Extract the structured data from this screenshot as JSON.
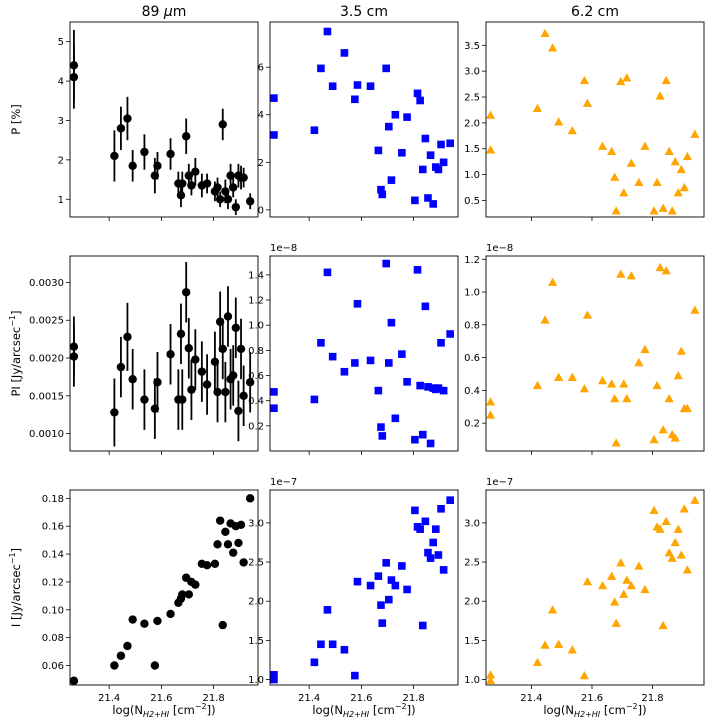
{
  "chart_data": {
    "type": "scatter",
    "layout": "3x3 grid",
    "column_titles": [
      {
        "main": "89 ",
        "italic": "μ",
        "suffix": "m"
      },
      {
        "main": "3.5 cm",
        "italic": "",
        "suffix": ""
      },
      {
        "main": "6.2 cm",
        "italic": "",
        "suffix": ""
      }
    ],
    "xlabel": {
      "a": "log(N",
      "sub": "H2+HI",
      "b": " [cm",
      "sup": "−2",
      "c": "])"
    },
    "xlim": [
      21.25,
      21.97
    ],
    "xticks": [
      "21.4",
      "21.6",
      "21.8"
    ],
    "xtick_values": [
      21.4,
      21.6,
      21.8
    ],
    "rows": [
      {
        "ylabel": "P [%]"
      },
      {
        "ylabel": "PI [Jy/arcsec",
        "ylabel_sup": "−1",
        "ylabel_end": "]"
      },
      {
        "ylabel": "I [Jy/arcsec",
        "ylabel_sup": "−1",
        "ylabel_end": "]"
      }
    ],
    "colors": {
      "col1": "#000000",
      "col2": "#0000ff",
      "col3": "#ffa500"
    },
    "x": [
      21.265,
      21.265,
      21.42,
      21.445,
      21.47,
      21.49,
      21.535,
      21.575,
      21.585,
      21.635,
      21.665,
      21.675,
      21.68,
      21.695,
      21.705,
      21.715,
      21.73,
      21.755,
      21.775,
      21.805,
      21.815,
      21.825,
      21.835,
      21.845,
      21.855,
      21.865,
      21.875,
      21.885,
      21.895,
      21.905,
      21.915,
      21.94
    ],
    "panels": [
      {
        "row": 0,
        "col": 0,
        "marker": "circle",
        "ylim": [
          0.55,
          5.5
        ],
        "yticks": [
          "1",
          "2",
          "3",
          "4",
          "5"
        ],
        "ytick_values": [
          1,
          2,
          3,
          4,
          5
        ],
        "y": [
          4.4,
          4.1,
          2.1,
          2.8,
          3.05,
          1.85,
          2.2,
          1.6,
          1.85,
          2.15,
          1.4,
          1.1,
          1.4,
          2.6,
          1.6,
          1.35,
          1.7,
          1.35,
          1.4,
          1.2,
          1.3,
          1.0,
          2.9,
          1.2,
          1.0,
          1.6,
          1.3,
          0.8,
          1.6,
          1.55,
          1.55,
          0.95
        ],
        "err": [
          0.9,
          0.8,
          0.65,
          0.55,
          0.55,
          0.4,
          0.45,
          0.45,
          0.35,
          0.4,
          0.3,
          0.3,
          0.3,
          0.45,
          0.3,
          0.25,
          0.35,
          0.3,
          0.25,
          0.25,
          0.25,
          0.2,
          0.4,
          0.3,
          0.25,
          0.3,
          0.25,
          0.2,
          0.3,
          0.3,
          0.25,
          0.2
        ]
      },
      {
        "row": 0,
        "col": 1,
        "marker": "square",
        "ylim": [
          -0.3,
          7.9
        ],
        "yticks": [
          "0",
          "2",
          "4",
          "6"
        ],
        "ytick_values": [
          0,
          2,
          4,
          6
        ],
        "y": [
          4.7,
          3.15,
          3.35,
          5.95,
          7.5,
          5.2,
          6.6,
          4.65,
          5.25,
          5.2,
          2.5,
          0.85,
          0.65,
          5.95,
          3.5,
          1.25,
          4.0,
          2.4,
          3.9,
          0.4,
          4.9,
          4.6,
          1.7,
          3.0,
          0.5,
          2.3,
          0.25,
          1.8,
          1.7,
          2.75,
          2.0,
          2.8
        ]
      },
      {
        "row": 0,
        "col": 2,
        "marker": "triangle",
        "ylim": [
          0.18,
          3.95
        ],
        "yticks": [
          "0.5",
          "1.0",
          "1.5",
          "2.0",
          "2.5",
          "3.0",
          "3.5"
        ],
        "ytick_values": [
          0.5,
          1.0,
          1.5,
          2.0,
          2.5,
          3.0,
          3.5
        ],
        "y": [
          2.15,
          1.48,
          2.28,
          3.73,
          3.45,
          2.02,
          1.85,
          2.82,
          2.38,
          1.55,
          1.45,
          0.95,
          0.3,
          2.8,
          0.65,
          2.87,
          1.22,
          0.85,
          1.55,
          0.3,
          0.85,
          2.52,
          0.35,
          2.82,
          1.45,
          0.3,
          1.25,
          0.65,
          1.1,
          0.75,
          1.35,
          1.78
        ]
      },
      {
        "row": 1,
        "col": 0,
        "marker": "circle",
        "ylim": [
          0.00077,
          0.00335
        ],
        "yticks": [
          "0.0010",
          "0.0015",
          "0.0020",
          "0.0025",
          "0.0030"
        ],
        "ytick_values": [
          0.001,
          0.0015,
          0.002,
          0.0025,
          0.003
        ],
        "y": [
          0.00215,
          0.00202,
          0.00128,
          0.00188,
          0.00228,
          0.00172,
          0.00145,
          0.00133,
          0.00168,
          0.00205,
          0.00145,
          0.00232,
          0.00145,
          0.00287,
          0.00213,
          0.00158,
          0.00198,
          0.00182,
          0.00165,
          0.00195,
          0.00155,
          0.00248,
          0.00212,
          0.00155,
          0.00255,
          0.00172,
          0.00177,
          0.0024,
          0.0013,
          0.00212,
          0.0015,
          0.00168
        ],
        "err": [
          0.0004,
          0.0004,
          0.00045,
          0.0004,
          0.00045,
          0.0004,
          0.0004,
          0.0004,
          0.0004,
          0.0004,
          0.0004,
          0.0004,
          0.0004,
          0.0004,
          0.0004,
          0.0004,
          0.0004,
          0.0004,
          0.0004,
          0.0004,
          0.0004,
          0.0004,
          0.0004,
          0.0004,
          0.0004,
          0.0004,
          0.0004,
          0.0004,
          0.0004,
          0.0004,
          0.0004,
          0.0004
        ]
      },
      {
        "row": 1,
        "col": 1,
        "marker": "square",
        "ylim": [
          0.0,
          1.55
        ],
        "yticks": [
          "0.2",
          "0.4",
          "0.6",
          "0.8",
          "1.0",
          "1.2",
          "1.4"
        ],
        "ytick_values": [
          0.2,
          0.4,
          0.6,
          0.8,
          1.0,
          1.2,
          1.4
        ],
        "offset_text": "1e−8",
        "y": [
          0.47,
          0.34,
          0.41,
          0.86,
          1.42,
          0.75,
          0.63,
          0.7,
          1.17,
          0.72,
          0.48,
          0.19,
          0.12,
          1.49,
          0.7,
          1.02,
          0.26,
          0.77,
          0.55,
          0.09,
          1.44,
          0.52,
          0.13,
          1.15,
          0.51,
          0.06,
          0.5,
          0.49,
          0.5,
          0.86,
          0.48,
          0.93
        ]
      },
      {
        "row": 1,
        "col": 2,
        "marker": "triangle",
        "ylim": [
          0.03,
          1.22
        ],
        "yticks": [
          "0.2",
          "0.4",
          "0.6",
          "0.8",
          "1.0",
          "1.2"
        ],
        "ytick_values": [
          0.2,
          0.4,
          0.6,
          0.8,
          1.0,
          1.2
        ],
        "offset_text": "1e−8",
        "y": [
          0.33,
          0.25,
          0.43,
          0.83,
          1.06,
          0.48,
          0.48,
          0.41,
          0.86,
          0.46,
          0.44,
          0.35,
          0.08,
          1.11,
          0.44,
          0.35,
          1.1,
          0.57,
          0.65,
          0.1,
          0.43,
          1.15,
          0.16,
          1.13,
          0.35,
          0.13,
          0.11,
          0.49,
          0.64,
          0.29,
          0.29,
          0.89
        ]
      },
      {
        "row": 2,
        "col": 0,
        "marker": "circle",
        "ylim": [
          0.046,
          0.186
        ],
        "yticks": [
          "0.06",
          "0.08",
          "0.10",
          "0.12",
          "0.14",
          "0.16",
          "0.18"
        ],
        "ytick_values": [
          0.06,
          0.08,
          0.1,
          0.12,
          0.14,
          0.16,
          0.18
        ],
        "y": [
          0.049,
          0.049,
          0.06,
          0.067,
          0.074,
          0.093,
          0.09,
          0.06,
          0.092,
          0.097,
          0.105,
          0.108,
          0.111,
          0.123,
          0.111,
          0.12,
          0.118,
          0.133,
          0.132,
          0.133,
          0.147,
          0.164,
          0.089,
          0.156,
          0.147,
          0.162,
          0.141,
          0.16,
          0.148,
          0.161,
          0.134,
          0.18
        ]
      },
      {
        "row": 2,
        "col": 1,
        "marker": "square",
        "ylim": [
          0.93,
          3.42
        ],
        "yticks": [
          "1.0",
          "1.5",
          "2.0",
          "2.5",
          "3.0"
        ],
        "ytick_values": [
          1.0,
          1.5,
          2.0,
          2.5,
          3.0
        ],
        "offset_text": "1e−7",
        "y": [
          1.06,
          1.0,
          1.22,
          1.45,
          1.89,
          1.45,
          1.38,
          1.05,
          2.25,
          2.2,
          2.32,
          1.95,
          1.72,
          2.49,
          2.02,
          2.27,
          2.2,
          2.45,
          2.15,
          3.16,
          2.95,
          2.92,
          1.69,
          3.02,
          2.62,
          2.55,
          2.75,
          2.92,
          2.59,
          3.18,
          2.4,
          3.29
        ]
      },
      {
        "row": 2,
        "col": 2,
        "marker": "triangle",
        "ylim": [
          0.93,
          3.42
        ],
        "yticks": [
          "1.0",
          "1.5",
          "2.0",
          "2.5",
          "3.0"
        ],
        "ytick_values": [
          1.0,
          1.5,
          2.0,
          2.5,
          3.0
        ],
        "offset_text": "1e−7",
        "y": [
          1.06,
          0.99,
          1.22,
          1.44,
          1.89,
          1.45,
          1.38,
          1.05,
          2.25,
          2.2,
          2.32,
          1.99,
          1.72,
          2.49,
          2.09,
          2.27,
          2.2,
          2.45,
          2.15,
          3.16,
          2.95,
          2.92,
          1.69,
          3.02,
          2.62,
          2.55,
          2.75,
          2.92,
          2.59,
          3.18,
          2.4,
          3.29
        ]
      }
    ]
  }
}
